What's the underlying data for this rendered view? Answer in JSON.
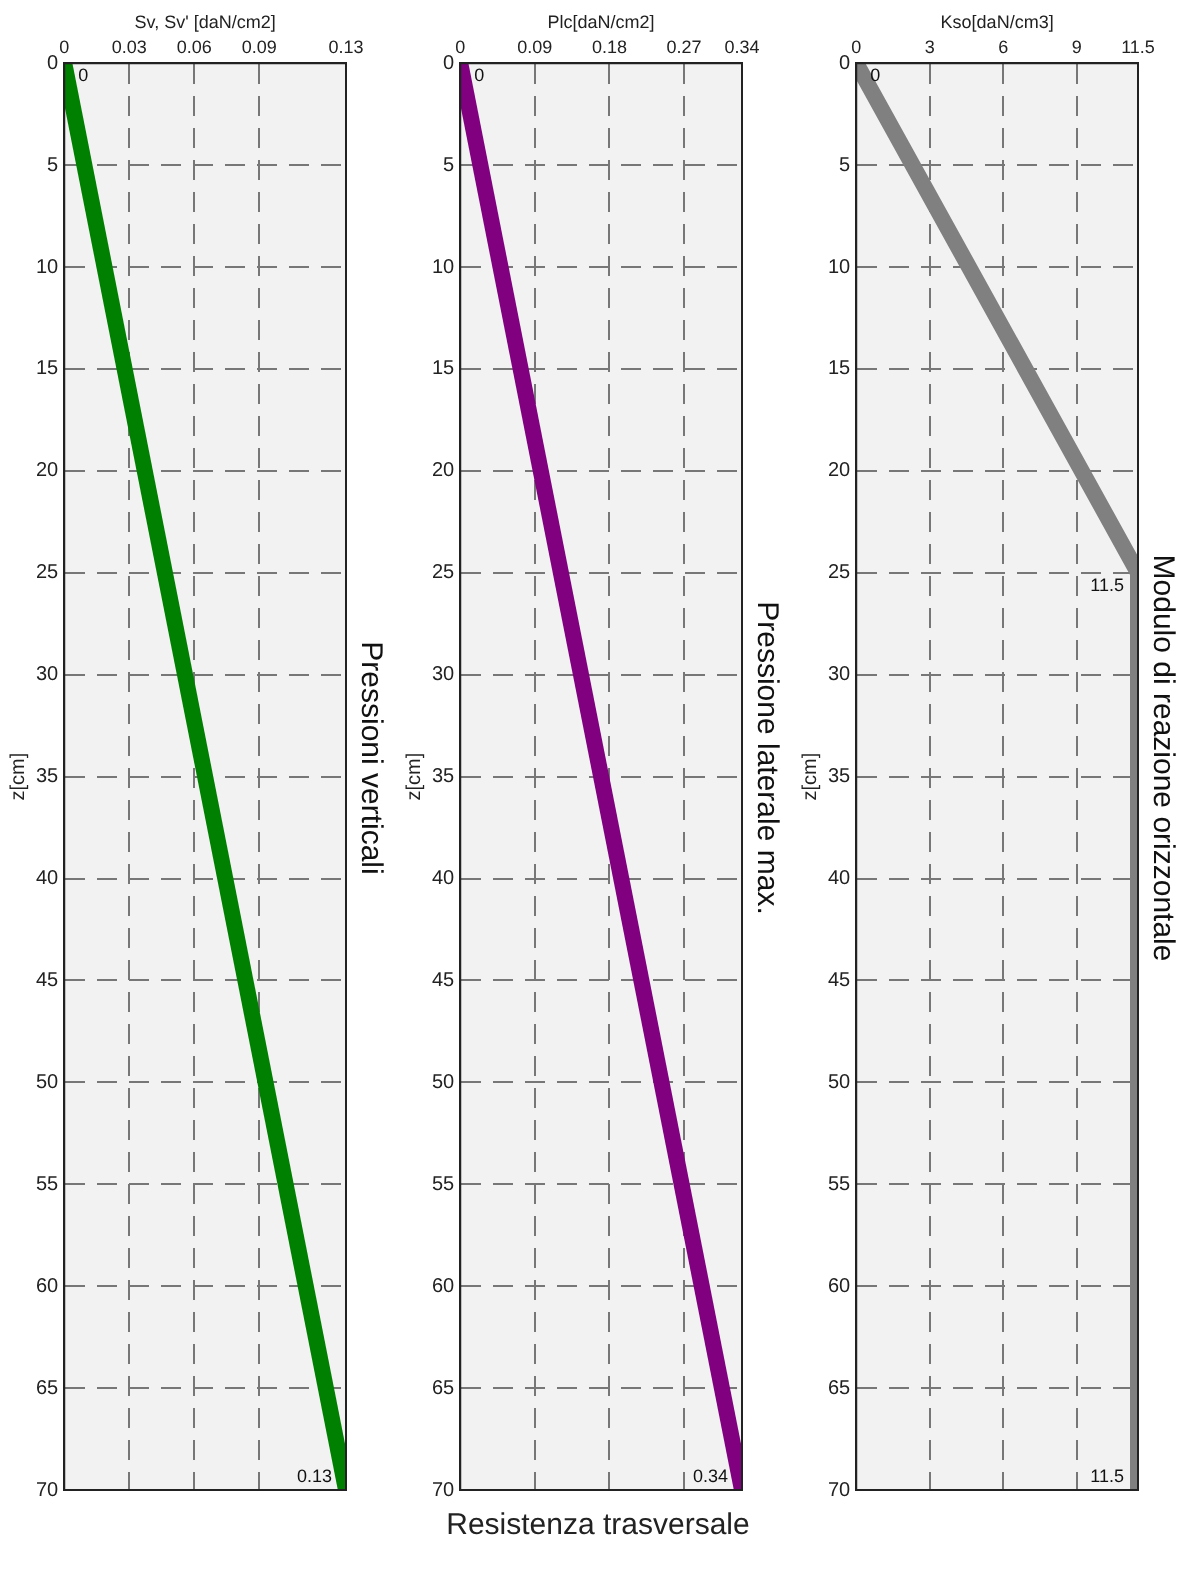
{
  "chart_data": [
    {
      "type": "line",
      "title": "Pressioni verticali",
      "xlabel": "Sv, Sv' [daN/cm2]",
      "ylabel": "z[cm]",
      "xlim": [
        0,
        0.13
      ],
      "xticks": [
        0,
        0.03,
        0.06,
        0.09,
        0.13
      ],
      "ylim": [
        70,
        0
      ],
      "yticks": [
        0,
        5,
        10,
        15,
        20,
        25,
        30,
        35,
        40,
        45,
        50,
        55,
        60,
        65,
        70
      ],
      "grid": true,
      "series": [
        {
          "color": "#008000",
          "x": [
            0,
            0.13
          ],
          "values": [
            0,
            70
          ]
        }
      ],
      "annotations": [
        {
          "text": "0",
          "x": 0,
          "y": 0
        },
        {
          "text": "0.13",
          "x": 0.13,
          "y": 70
        }
      ]
    },
    {
      "type": "line",
      "title": "Pressione laterale max.",
      "xlabel": "Plc[daN/cm2]",
      "ylabel": "z[cm]",
      "xlim": [
        0,
        0.34
      ],
      "xticks": [
        0,
        0.09,
        0.18,
        0.27,
        0.34
      ],
      "ylim": [
        70,
        0
      ],
      "yticks": [
        0,
        5,
        10,
        15,
        20,
        25,
        30,
        35,
        40,
        45,
        50,
        55,
        60,
        65,
        70
      ],
      "grid": true,
      "series": [
        {
          "color": "#800080",
          "x": [
            0,
            0.34
          ],
          "values": [
            0,
            70
          ]
        }
      ],
      "annotations": [
        {
          "text": "0",
          "x": 0,
          "y": 0
        },
        {
          "text": "0.34",
          "x": 0.34,
          "y": 70
        },
        "Resistenza trasversale"
      ]
    },
    {
      "type": "line",
      "title": "Modulo di reazione orizzontale",
      "xlabel": "Kso[daN/cm3]",
      "ylabel": "z[cm]",
      "xlim": [
        0,
        11.5
      ],
      "xticks": [
        0,
        3,
        6,
        9,
        11.5
      ],
      "ylim": [
        70,
        0
      ],
      "yticks": [
        0,
        5,
        10,
        15,
        20,
        25,
        30,
        35,
        40,
        45,
        50,
        55,
        60,
        65,
        70
      ],
      "grid": true,
      "series": [
        {
          "color": "#808080",
          "x": [
            0,
            11.5,
            11.5
          ],
          "values": [
            0,
            25,
            70
          ]
        }
      ],
      "annotations": [
        {
          "text": "0",
          "x": 0,
          "y": 0
        },
        {
          "text": "11.5",
          "x": 11.5,
          "y": 25
        },
        {
          "text": "11.5",
          "x": 11.5,
          "y": 70
        }
      ]
    }
  ]
}
